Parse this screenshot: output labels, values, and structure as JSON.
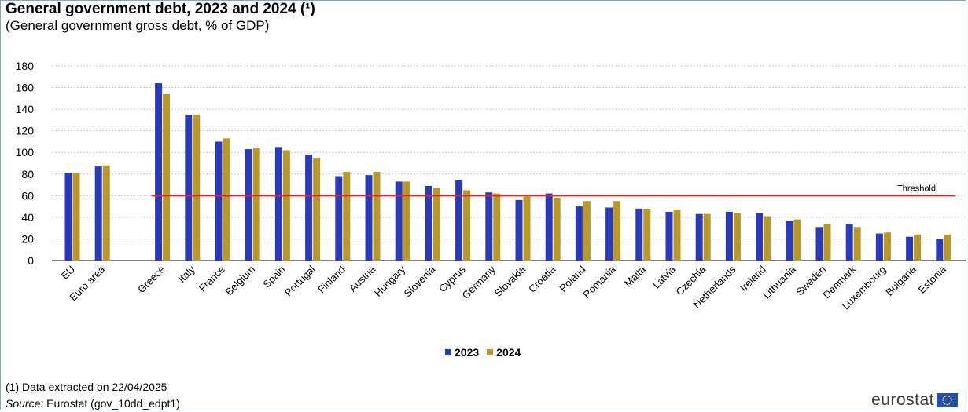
{
  "header": {
    "title": "General government debt, 2023 and 2024 (¹)",
    "subtitle": "(General government  gross debt, % of GDP)"
  },
  "footer": {
    "footnote": "(1) Data extracted  on 22/04/2025",
    "source_label": "Source:",
    "source_text": " Eurostat (gov_10dd_edpt1)",
    "logo_text": "eurostat"
  },
  "colors": {
    "series_2023": "#2a3ab6",
    "series_2024": "#b8982a",
    "threshold": "#e0262a",
    "grid": "#c8c8c8",
    "eu_flag_blue": "#1f4fb0",
    "eu_flag_star": "#ffcc00"
  },
  "chart_data": {
    "type": "bar",
    "title": "General government debt, 2023 and 2024 (¹)",
    "subtitle": "(General government  gross debt, % of GDP)",
    "categories": [
      "EU",
      "Euro area",
      "Greece",
      "Italy",
      "France",
      "Belgium",
      "Spain",
      "Portugal",
      "Finland",
      "Austria",
      "Hungary",
      "Slovenia",
      "Cyprus",
      "Germany",
      "Slovakia",
      "Croatia",
      "Poland",
      "Romania",
      "Malta",
      "Latvia",
      "Czechia",
      "Netherlands",
      "Ireland",
      "Lithuania",
      "Sweden",
      "Denmark",
      "Luxembourg",
      "Bulgaria",
      "Estonia"
    ],
    "series": [
      {
        "name": "2023",
        "values": [
          81,
          87,
          164,
          135,
          110,
          103,
          105,
          98,
          78,
          79,
          73,
          69,
          74,
          63,
          56,
          62,
          50,
          49,
          48,
          45,
          43,
          45,
          44,
          37,
          31,
          34,
          25,
          22,
          20
        ]
      },
      {
        "name": "2024",
        "values": [
          81,
          88,
          154,
          135,
          113,
          104,
          102,
          95,
          82,
          82,
          73,
          67,
          65,
          62,
          59,
          58,
          55,
          55,
          48,
          47,
          43,
          44,
          41,
          38,
          34,
          31,
          26,
          24,
          24
        ]
      }
    ],
    "threshold": {
      "label": "Threshold",
      "value": 60
    },
    "yticks": [
      0,
      20,
      40,
      60,
      80,
      100,
      120,
      140,
      160,
      180
    ],
    "ylim": [
      0,
      180
    ],
    "xlabel": "",
    "ylabel": "",
    "grid": true,
    "legend_position": "bottom"
  }
}
